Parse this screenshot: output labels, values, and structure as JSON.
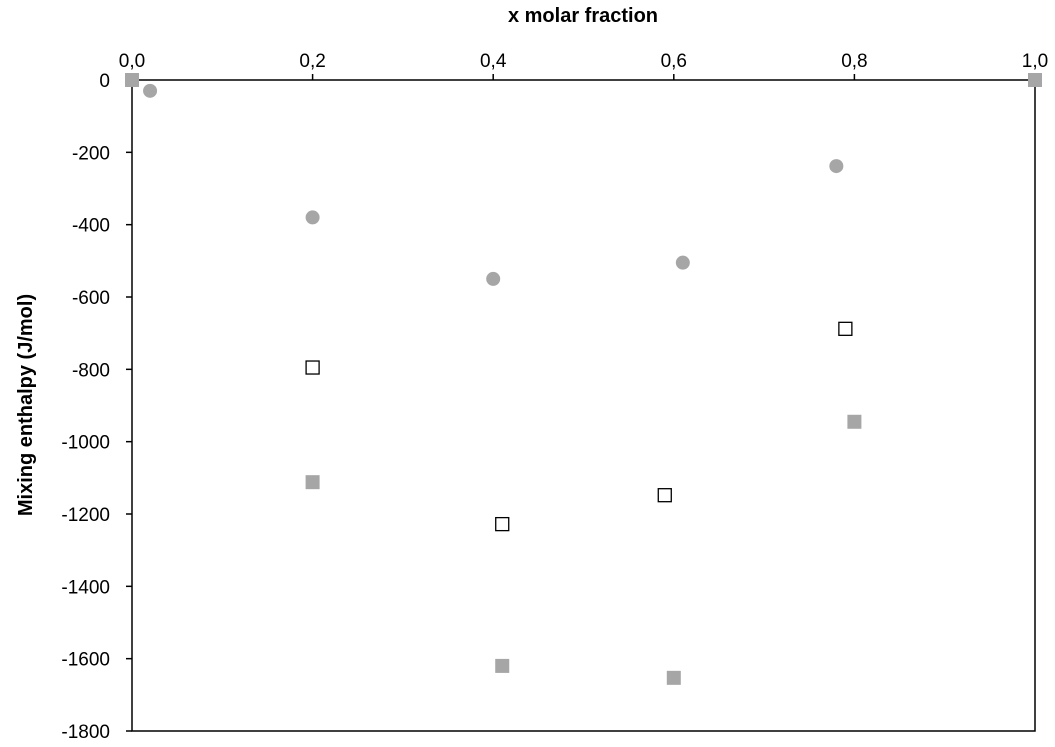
{
  "chart_data": {
    "type": "scatter",
    "title": "",
    "xlabel": "x molar fraction",
    "ylabel": "Mixing enthalpy (J/mol)",
    "x_axis_position": "top",
    "xlim": [
      0,
      1
    ],
    "ylim": [
      -1800,
      0
    ],
    "x_ticks": [
      0,
      0.2,
      0.4,
      0.6,
      0.8,
      1.0
    ],
    "x_tick_labels": [
      "0,0",
      "0,2",
      "0,4",
      "0,6",
      "0,8",
      "1,0"
    ],
    "y_ticks": [
      0,
      -200,
      -400,
      -600,
      -800,
      -1000,
      -1200,
      -1400,
      -1600,
      -1800
    ],
    "y_tick_labels": [
      "0",
      "-200",
      "-400",
      "-600",
      "-800",
      "-1000",
      "-1200",
      "-1400",
      "-1600",
      "-1800"
    ],
    "grid": false,
    "legend": "none",
    "series": [
      {
        "marker": "circle",
        "color": "#a6a6a6",
        "points": [
          {
            "x": 0.02,
            "y": -30
          },
          {
            "x": 0.2,
            "y": -380
          },
          {
            "x": 0.4,
            "y": -550
          },
          {
            "x": 0.61,
            "y": -505
          },
          {
            "x": 0.78,
            "y": -238
          }
        ]
      },
      {
        "marker": "square-open",
        "color": "#000000",
        "points": [
          {
            "x": 0.2,
            "y": -795
          },
          {
            "x": 0.41,
            "y": -1228
          },
          {
            "x": 0.59,
            "y": -1148
          },
          {
            "x": 0.79,
            "y": -688
          }
        ]
      },
      {
        "marker": "square-filled",
        "color": "#a6a6a6",
        "points": [
          {
            "x": 0.0,
            "y": 0
          },
          {
            "x": 0.2,
            "y": -1112
          },
          {
            "x": 0.41,
            "y": -1620
          },
          {
            "x": 0.6,
            "y": -1653
          },
          {
            "x": 0.8,
            "y": -945
          },
          {
            "x": 1.0,
            "y": 0
          }
        ]
      }
    ]
  }
}
